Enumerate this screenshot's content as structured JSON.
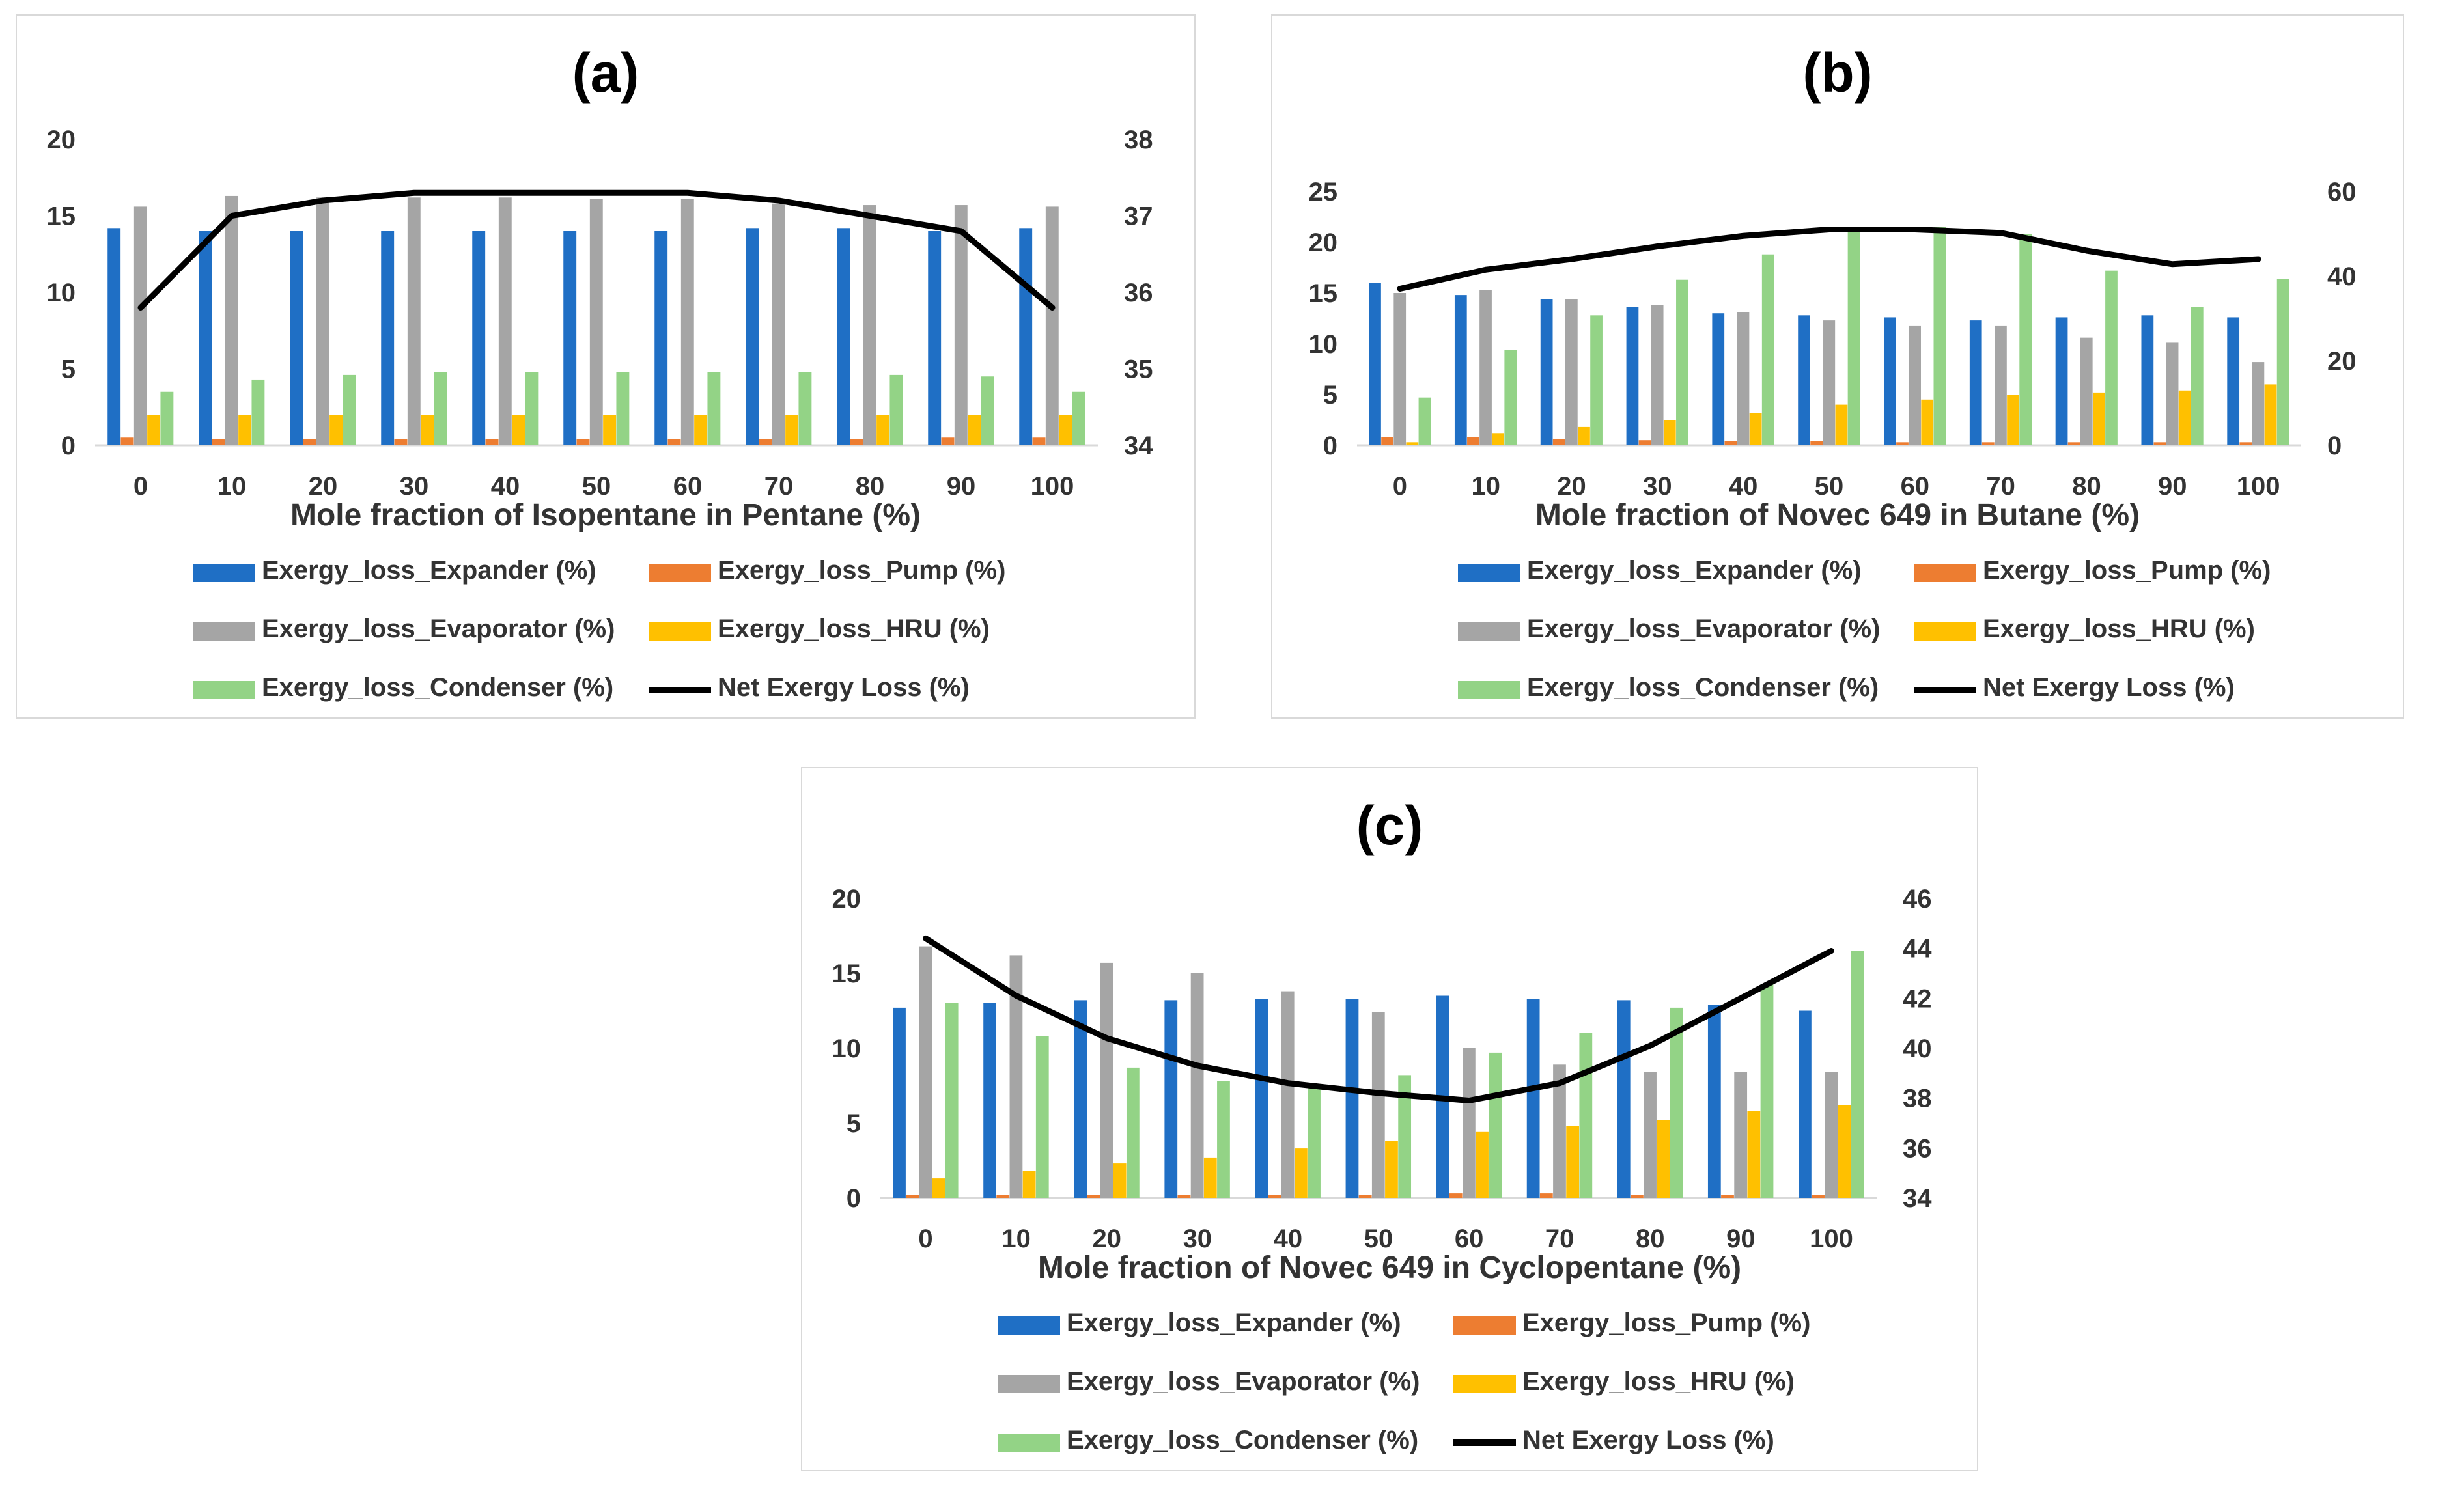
{
  "colors": {
    "expander": "#1f6fc5",
    "pump": "#ed7d31",
    "evaporator": "#a5a5a5",
    "hru": "#ffc000",
    "condenser": "#93d386",
    "net": "#000000"
  },
  "legend": [
    {
      "key": "expander",
      "label": "Exergy_loss_Expander (%)"
    },
    {
      "key": "pump",
      "label": "Exergy_loss_Pump (%)"
    },
    {
      "key": "evaporator",
      "label": "Exergy_loss_Evaporator (%)"
    },
    {
      "key": "hru",
      "label": "Exergy_loss_HRU (%)"
    },
    {
      "key": "condenser",
      "label": "Exergy_loss_Condenser (%)"
    },
    {
      "key": "net",
      "label": "Net Exergy Loss (%)"
    }
  ],
  "chart_data": [
    {
      "id": "a",
      "type": "bar",
      "title": "(a)",
      "xlabel": "Mole fraction of Isopentane in Pentane (%)",
      "categories": [
        "0",
        "10",
        "20",
        "30",
        "40",
        "50",
        "60",
        "70",
        "80",
        "90",
        "100"
      ],
      "ylim": [
        0,
        20
      ],
      "yticks": [
        "0",
        "5",
        "10",
        "15",
        "20"
      ],
      "y2lim": [
        34,
        38
      ],
      "y2ticks": [
        "34",
        "35",
        "36",
        "37",
        "38"
      ],
      "series": [
        {
          "name": "Exergy_loss_Expander (%)",
          "key": "expander",
          "values": [
            14.2,
            14.0,
            14.0,
            14.0,
            14.0,
            14.0,
            14.0,
            14.2,
            14.2,
            14.0,
            14.2
          ]
        },
        {
          "name": "Exergy_loss_Pump (%)",
          "key": "pump",
          "values": [
            0.5,
            0.4,
            0.4,
            0.4,
            0.4,
            0.4,
            0.4,
            0.4,
            0.4,
            0.5,
            0.5
          ]
        },
        {
          "name": "Exergy_loss_Evaporator (%)",
          "key": "evaporator",
          "values": [
            15.6,
            16.3,
            16.2,
            16.2,
            16.2,
            16.1,
            16.1,
            15.8,
            15.7,
            15.7,
            15.6
          ]
        },
        {
          "name": "Exergy_loss_HRU (%)",
          "key": "hru",
          "values": [
            2.0,
            2.0,
            2.0,
            2.0,
            2.0,
            2.0,
            2.0,
            2.0,
            2.0,
            2.0,
            2.0
          ]
        },
        {
          "name": "Exergy_loss_Condenser (%)",
          "key": "condenser",
          "values": [
            3.5,
            4.3,
            4.6,
            4.8,
            4.8,
            4.8,
            4.8,
            4.8,
            4.6,
            4.5,
            3.5
          ]
        },
        {
          "name": "Net Exergy Loss (%)",
          "key": "net",
          "type": "line",
          "axis": "secondary",
          "values": [
            35.8,
            37.0,
            37.2,
            37.3,
            37.3,
            37.3,
            37.3,
            37.2,
            37.0,
            36.8,
            35.8
          ]
        }
      ]
    },
    {
      "id": "b",
      "type": "bar",
      "title": "(b)",
      "xlabel": "Mole fraction of Novec 649 in Butane (%)",
      "categories": [
        "0",
        "10",
        "20",
        "30",
        "40",
        "50",
        "60",
        "70",
        "80",
        "90",
        "100"
      ],
      "ylim": [
        0,
        25
      ],
      "yticks": [
        "0",
        "5",
        "10",
        "15",
        "20",
        "25"
      ],
      "y2lim": [
        0,
        60
      ],
      "y2ticks": [
        "0",
        "20",
        "40",
        "60"
      ],
      "series": [
        {
          "name": "Exergy_loss_Expander (%)",
          "key": "expander",
          "values": [
            16.0,
            14.8,
            14.4,
            13.6,
            13.0,
            12.8,
            12.6,
            12.3,
            12.6,
            12.8,
            12.6
          ]
        },
        {
          "name": "Exergy_loss_Pump (%)",
          "key": "pump",
          "values": [
            0.8,
            0.8,
            0.6,
            0.5,
            0.4,
            0.4,
            0.3,
            0.3,
            0.3,
            0.3,
            0.3
          ]
        },
        {
          "name": "Exergy_loss_Evaporator (%)",
          "key": "evaporator",
          "values": [
            15.0,
            15.3,
            14.4,
            13.8,
            13.1,
            12.3,
            11.8,
            11.8,
            10.6,
            10.1,
            8.2
          ]
        },
        {
          "name": "Exergy_loss_HRU (%)",
          "key": "hru",
          "values": [
            0.3,
            1.2,
            1.8,
            2.5,
            3.2,
            4.0,
            4.5,
            5.0,
            5.2,
            5.4,
            6.0
          ]
        },
        {
          "name": "Exergy_loss_Condenser (%)",
          "key": "condenser",
          "values": [
            4.7,
            9.4,
            12.8,
            16.3,
            18.8,
            21.0,
            21.5,
            20.8,
            17.2,
            13.6,
            16.4
          ]
        },
        {
          "name": "Net Exergy Loss (%)",
          "key": "net",
          "type": "line",
          "axis": "secondary",
          "values": [
            37,
            41.5,
            44,
            47,
            49.5,
            51,
            51,
            50.2,
            46,
            42.8,
            44
          ]
        }
      ]
    },
    {
      "id": "c",
      "type": "bar",
      "title": "(c)",
      "xlabel": "Mole fraction of Novec 649 in Cyclopentane (%)",
      "categories": [
        "0",
        "10",
        "20",
        "30",
        "40",
        "50",
        "60",
        "70",
        "80",
        "90",
        "100"
      ],
      "ylim": [
        0,
        20
      ],
      "yticks": [
        "0",
        "5",
        "10",
        "15",
        "20"
      ],
      "y2lim": [
        34,
        46
      ],
      "y2ticks": [
        "34",
        "36",
        "38",
        "40",
        "42",
        "44",
        "46"
      ],
      "series": [
        {
          "name": "Exergy_loss_Expander (%)",
          "key": "expander",
          "values": [
            12.7,
            13.0,
            13.2,
            13.2,
            13.3,
            13.3,
            13.5,
            13.3,
            13.2,
            12.9,
            12.5
          ]
        },
        {
          "name": "Exergy_loss_Pump (%)",
          "key": "pump",
          "values": [
            0.2,
            0.2,
            0.2,
            0.2,
            0.2,
            0.2,
            0.3,
            0.3,
            0.2,
            0.2,
            0.2
          ]
        },
        {
          "name": "Exergy_loss_Evaporator (%)",
          "key": "evaporator",
          "values": [
            16.8,
            16.2,
            15.7,
            15.0,
            13.8,
            12.4,
            10.0,
            8.9,
            8.4,
            8.4,
            8.4
          ]
        },
        {
          "name": "Exergy_loss_HRU (%)",
          "key": "hru",
          "values": [
            1.3,
            1.8,
            2.3,
            2.7,
            3.3,
            3.8,
            4.4,
            4.8,
            5.2,
            5.8,
            6.2
          ]
        },
        {
          "name": "Exergy_loss_Condenser (%)",
          "key": "condenser",
          "values": [
            13.0,
            10.8,
            8.7,
            7.8,
            7.5,
            8.2,
            9.7,
            11.0,
            12.7,
            14.3,
            16.5
          ]
        },
        {
          "name": "Net Exergy Loss (%)",
          "key": "net",
          "type": "line",
          "axis": "secondary",
          "values": [
            44.4,
            42.1,
            40.4,
            39.3,
            38.6,
            38.2,
            37.9,
            38.6,
            40.1,
            42.0,
            43.9
          ]
        }
      ]
    }
  ]
}
